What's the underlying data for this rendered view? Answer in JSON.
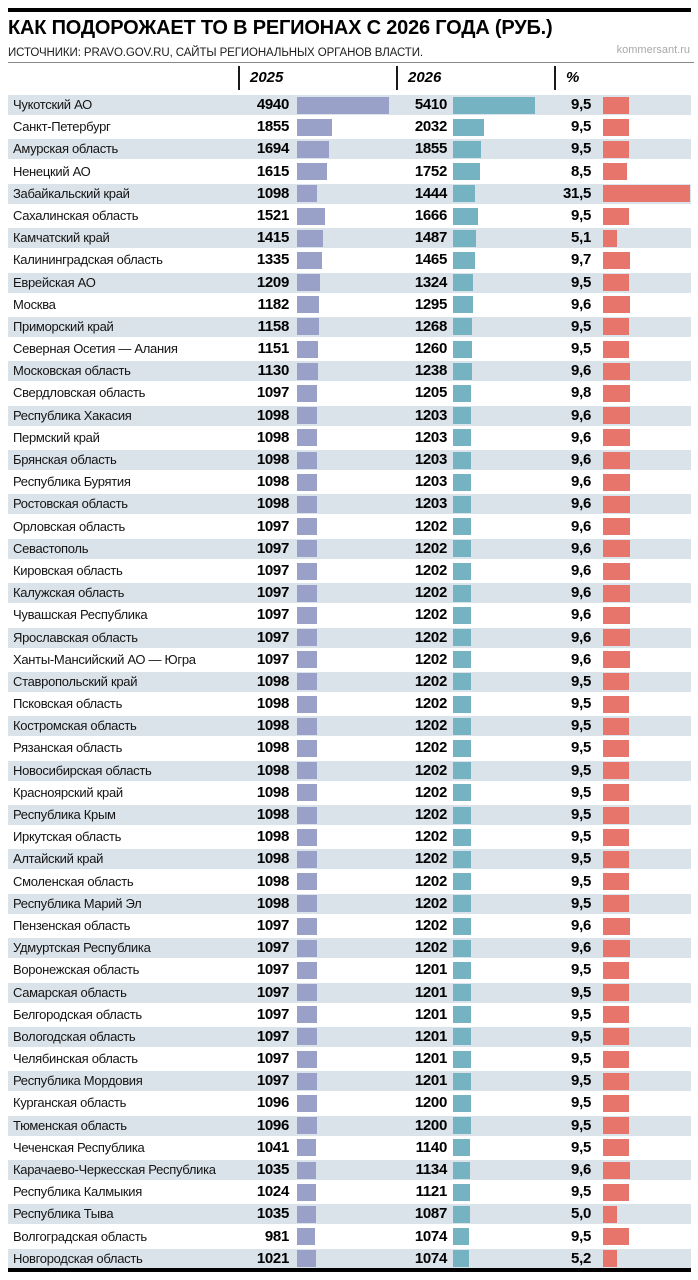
{
  "header": {
    "title": "КАК ПОДОРОЖАЕТ ТО В РЕГИОНАХ С 2026 ГОДА (РУБ.)",
    "source": "ИСТОЧНИКИ: PRAVO.GOV.RU, САЙТЫ РЕГИОНАЛЬНЫХ ОРГАНОВ ВЛАСТИ.",
    "watermark": "kommersant.ru"
  },
  "columns": {
    "y2025": "2025",
    "y2026": "2026",
    "pct": "%"
  },
  "colors": {
    "bar_2025": "#9aa1c9",
    "bar_2026": "#75b3c2",
    "bar_pct": "#e7756b",
    "row_stripe": "#dbe3ea",
    "rule": "#000000"
  },
  "chart_data": {
    "type": "bar",
    "title": "КАК ПОДОРОЖАЕТ ТО В РЕГИОНАХ С 2026 ГОДА (РУБ.)",
    "subtitle": "ИСТОЧНИКИ: PRAVO.GOV.RU, САЙТЫ РЕГИОНАЛЬНЫХ ОРГАНОВ ВЛАСТИ.",
    "columns": [
      "2025",
      "2026",
      "%"
    ],
    "axis_max": {
      "2025": 4940,
      "2026": 5410,
      "pct": 31.5
    },
    "legend_position": "none",
    "grid": false,
    "rows": [
      [
        "Чукотский АО",
        4940,
        5410,
        9.5
      ],
      [
        "Санкт-Петербург",
        1855,
        2032,
        9.5
      ],
      [
        "Амурская область",
        1694,
        1855,
        9.5
      ],
      [
        "Ненецкий АО",
        1615,
        1752,
        8.5
      ],
      [
        "Забайкальский край",
        1098,
        1444,
        31.5
      ],
      [
        "Сахалинская область",
        1521,
        1666,
        9.5
      ],
      [
        "Камчатский край",
        1415,
        1487,
        5.1
      ],
      [
        "Калининградская область",
        1335,
        1465,
        9.7
      ],
      [
        "Еврейская АО",
        1209,
        1324,
        9.5
      ],
      [
        "Москва",
        1182,
        1295,
        9.6
      ],
      [
        "Приморский край",
        1158,
        1268,
        9.5
      ],
      [
        "Северная Осетия — Алания",
        1151,
        1260,
        9.5
      ],
      [
        "Московская область",
        1130,
        1238,
        9.6
      ],
      [
        "Свердловская область",
        1097,
        1205,
        9.8
      ],
      [
        "Республика Хакасия",
        1098,
        1203,
        9.6
      ],
      [
        "Пермский край",
        1098,
        1203,
        9.6
      ],
      [
        "Брянская область",
        1098,
        1203,
        9.6
      ],
      [
        "Республика Бурятия",
        1098,
        1203,
        9.6
      ],
      [
        "Ростовская область",
        1098,
        1203,
        9.6
      ],
      [
        "Орловская область",
        1097,
        1202,
        9.6
      ],
      [
        "Севастополь",
        1097,
        1202,
        9.6
      ],
      [
        "Кировская область",
        1097,
        1202,
        9.6
      ],
      [
        "Калужская область",
        1097,
        1202,
        9.6
      ],
      [
        "Чувашская Республика",
        1097,
        1202,
        9.6
      ],
      [
        "Ярославская область",
        1097,
        1202,
        9.6
      ],
      [
        "Ханты-Мансийский АО — Югра",
        1097,
        1202,
        9.6
      ],
      [
        "Ставропольский край",
        1098,
        1202,
        9.5
      ],
      [
        "Псковская область",
        1098,
        1202,
        9.5
      ],
      [
        "Костромская область",
        1098,
        1202,
        9.5
      ],
      [
        "Рязанская область",
        1098,
        1202,
        9.5
      ],
      [
        "Новосибирская область",
        1098,
        1202,
        9.5
      ],
      [
        "Красноярский край",
        1098,
        1202,
        9.5
      ],
      [
        "Республика Крым",
        1098,
        1202,
        9.5
      ],
      [
        "Иркутская область",
        1098,
        1202,
        9.5
      ],
      [
        "Алтайский край",
        1098,
        1202,
        9.5
      ],
      [
        "Смоленская область",
        1098,
        1202,
        9.5
      ],
      [
        "Республика Марий Эл",
        1098,
        1202,
        9.5
      ],
      [
        "Пензенская область",
        1097,
        1202,
        9.6
      ],
      [
        "Удмуртская Республика",
        1097,
        1202,
        9.6
      ],
      [
        "Воронежская область",
        1097,
        1201,
        9.5
      ],
      [
        "Самарская область",
        1097,
        1201,
        9.5
      ],
      [
        "Белгородская область",
        1097,
        1201,
        9.5
      ],
      [
        "Вологодская область",
        1097,
        1201,
        9.5
      ],
      [
        "Челябинская область",
        1097,
        1201,
        9.5
      ],
      [
        "Республика Мордовия",
        1097,
        1201,
        9.5
      ],
      [
        "Курганская область",
        1096,
        1200,
        9.5
      ],
      [
        "Тюменская область",
        1096,
        1200,
        9.5
      ],
      [
        "Чеченская Республика",
        1041,
        1140,
        9.5
      ],
      [
        "Карачаево-Черкесская Республика",
        1035,
        1134,
        9.6
      ],
      [
        "Республика Калмыкия",
        1024,
        1121,
        9.5
      ],
      [
        "Республика Тыва",
        1035,
        1087,
        5.0
      ],
      [
        "Волгоградская область",
        981,
        1074,
        9.5
      ],
      [
        "Новгородская область",
        1021,
        1074,
        5.2
      ]
    ]
  }
}
